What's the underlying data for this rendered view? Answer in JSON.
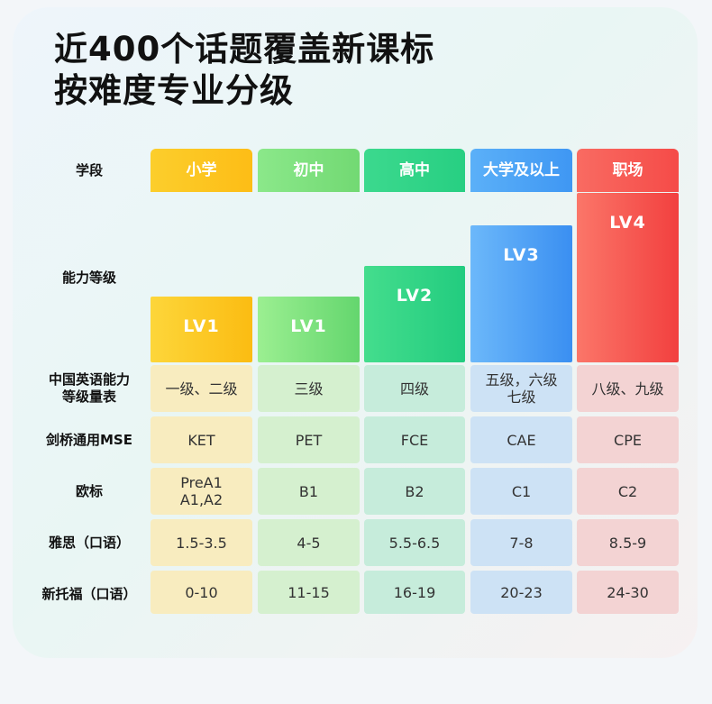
{
  "title": {
    "line1": "近400个话题覆盖新课标",
    "line2": "按难度专业分级"
  },
  "row_labels": {
    "stage": "学段",
    "level": "能力等级",
    "cse": "中国英语能力\n等级量表",
    "mse": "剑桥通用MSE",
    "cefr": "欧标",
    "ielts": "雅思（口语）",
    "toefl": "新托福（口语）"
  },
  "columns": [
    {
      "stage": "小学",
      "level": "LV1",
      "cse": "一级、二级",
      "mse": "KET",
      "cefr": "PreA1\nA1,A2",
      "ielts": "1.5-3.5",
      "toefl": "0-10"
    },
    {
      "stage": "初中",
      "level": "LV1",
      "cse": "三级",
      "mse": "PET",
      "cefr": "B1",
      "ielts": "4-5",
      "toefl": "11-15"
    },
    {
      "stage": "高中",
      "level": "LV2",
      "cse": "四级",
      "mse": "FCE",
      "cefr": "B2",
      "ielts": "5.5-6.5",
      "toefl": "16-19"
    },
    {
      "stage": "大学及以上",
      "level": "LV3",
      "cse": "五级，六级\n七级",
      "mse": "CAE",
      "cefr": "C1",
      "ielts": "7-8",
      "toefl": "20-23"
    },
    {
      "stage": "职场",
      "level": "LV4",
      "cse": "八级、九级",
      "mse": "CPE",
      "cefr": "C2",
      "ielts": "8.5-9",
      "toefl": "24-30"
    }
  ],
  "colors": {
    "yellow": "#fcc21c",
    "green": "#7ddf7c",
    "teal": "#2fd388",
    "blue": "#4ea4f6",
    "red": "#f7514d"
  }
}
